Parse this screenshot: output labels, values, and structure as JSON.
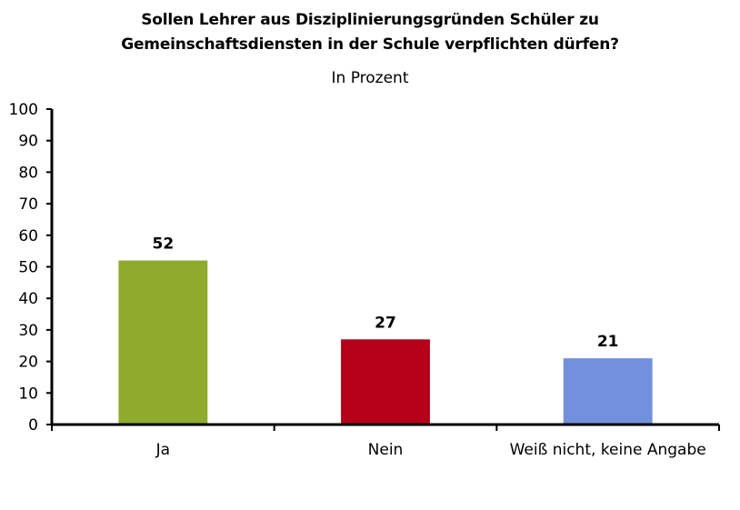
{
  "chart_data": {
    "type": "bar",
    "title_line1": "Sollen Lehrer aus Disziplinierungsgründen Schüler zu",
    "title_line2": "Gemeinschaftsdiensten in der Schule verpflichten dürfen?",
    "subtitle": "In Prozent",
    "categories": [
      "Ja",
      "Nein",
      "Weiß nicht, keine Angabe"
    ],
    "values": [
      52,
      27,
      21
    ],
    "colors": [
      "#8faa2c",
      "#b5001a",
      "#7390dc"
    ],
    "ylim": [
      0,
      100
    ],
    "yticks": [
      0,
      10,
      20,
      30,
      40,
      50,
      60,
      70,
      80,
      90,
      100
    ],
    "grid": false,
    "legend": "none"
  }
}
